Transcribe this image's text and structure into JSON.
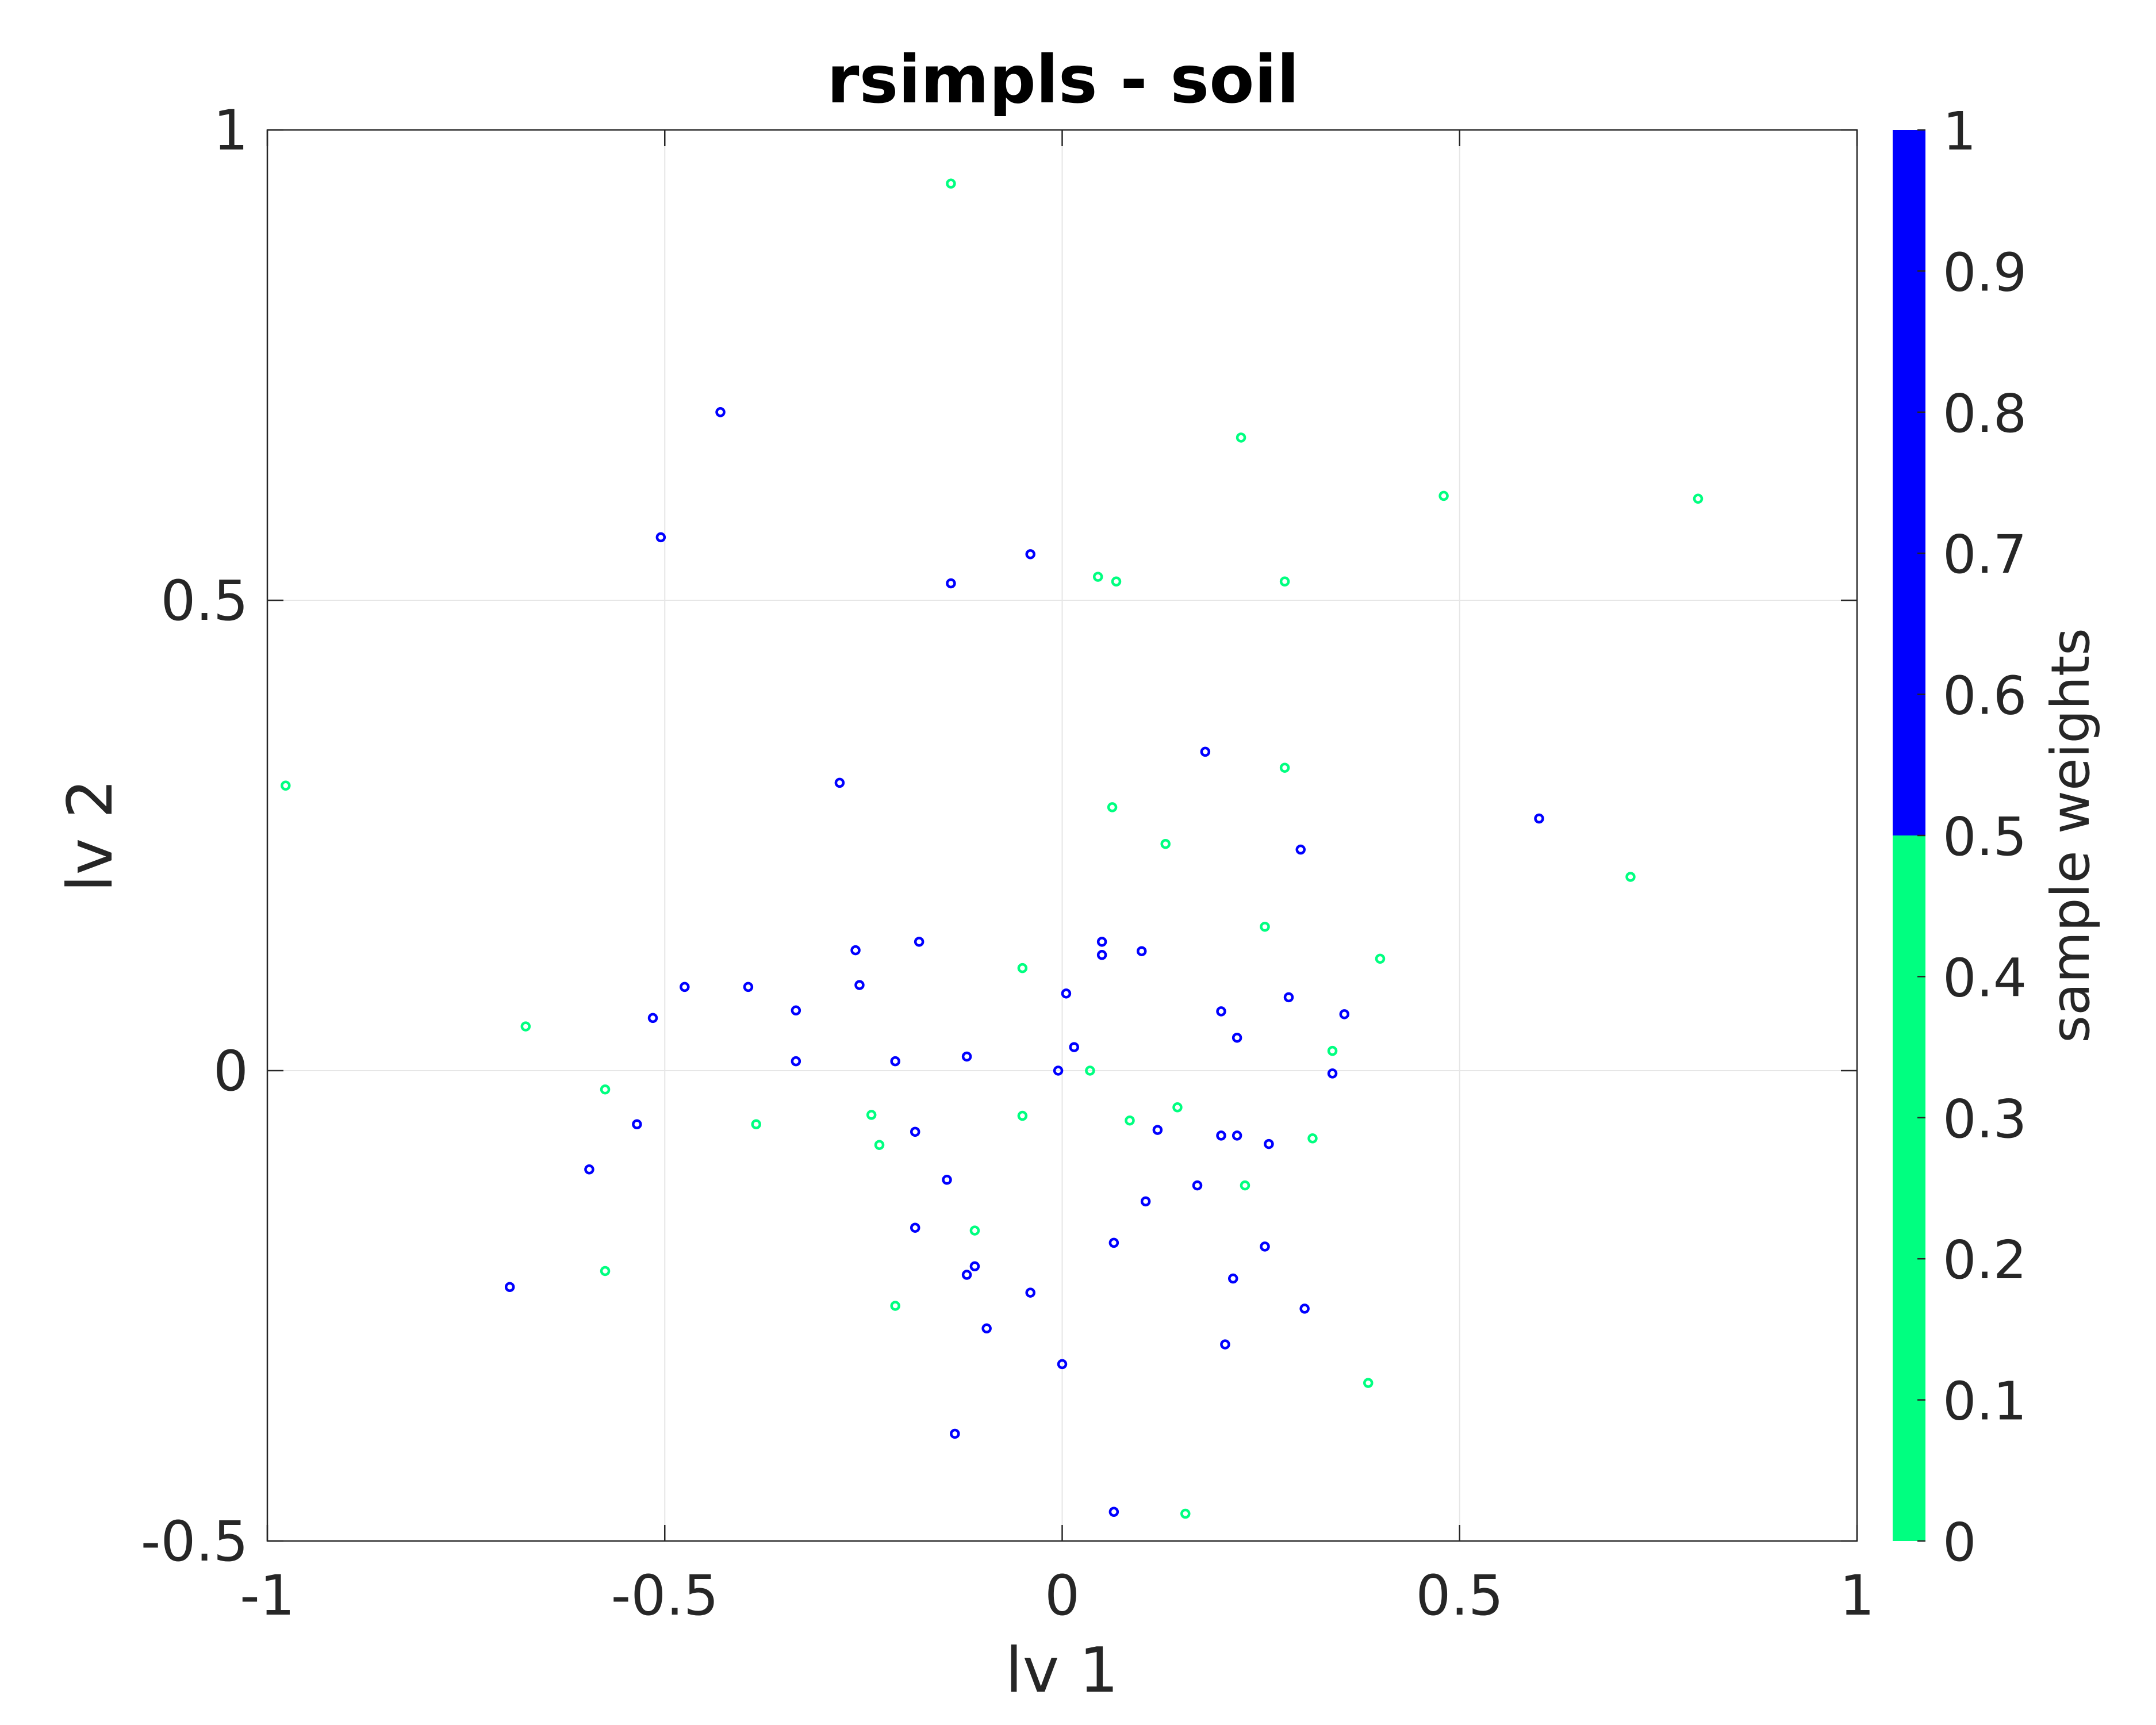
{
  "chart_data": {
    "type": "scatter",
    "title": "rsimpls - soil",
    "xlabel": "lv 1",
    "ylabel": "lv 2",
    "xlim": [
      -1,
      1
    ],
    "ylim": [
      -0.5,
      1
    ],
    "xticks": [
      -1,
      -0.5,
      0,
      0.5,
      1
    ],
    "xtick_labels": [
      "-1",
      "-0.5",
      "0",
      "0.5",
      "1"
    ],
    "yticks": [
      -0.5,
      0,
      0.5,
      1
    ],
    "ytick_labels": [
      "-0.5",
      "0",
      "0.5",
      "1"
    ],
    "grid": true,
    "colorbar": {
      "label": "sample weights",
      "ticks": [
        0,
        0.1,
        0.2,
        0.3,
        0.4,
        0.5,
        0.6,
        0.7,
        0.8,
        0.9,
        1
      ],
      "tick_labels": [
        "0",
        "0.1",
        "0.2",
        "0.3",
        "0.4",
        "0.5",
        "0.6",
        "0.7",
        "0.8",
        "0.9",
        "1"
      ],
      "segments": [
        {
          "from": 0,
          "to": 0.5,
          "color": "#00ff80"
        },
        {
          "from": 0.5,
          "to": 1,
          "color": "#0000ff"
        }
      ]
    },
    "colors": {
      "weight_0": "#00ff80",
      "weight_1": "#0000ff"
    },
    "series": [
      {
        "weight": 1,
        "points": [
          [
            -0.43,
            0.7
          ],
          [
            -0.505,
            0.567
          ],
          [
            -0.04,
            0.549
          ],
          [
            -0.14,
            0.518
          ],
          [
            -0.28,
            0.306
          ],
          [
            0.18,
            0.339
          ],
          [
            0.3,
            0.235
          ],
          [
            0.6,
            0.268
          ],
          [
            -0.26,
            0.128
          ],
          [
            -0.18,
            0.137
          ],
          [
            -0.475,
            0.089
          ],
          [
            -0.395,
            0.089
          ],
          [
            -0.255,
            0.091
          ],
          [
            -0.335,
            0.064
          ],
          [
            -0.515,
            0.056
          ],
          [
            0.05,
            0.137
          ],
          [
            0.05,
            0.123
          ],
          [
            0.1,
            0.127
          ],
          [
            0.005,
            0.082
          ],
          [
            0.285,
            0.078
          ],
          [
            0.2,
            0.063
          ],
          [
            0.355,
            0.06
          ],
          [
            0.22,
            0.035
          ],
          [
            0.015,
            0.025
          ],
          [
            -0.12,
            0.015
          ],
          [
            -0.335,
            0.01
          ],
          [
            -0.21,
            0.01
          ],
          [
            -0.005,
            0.0
          ],
          [
            0.34,
            -0.003
          ],
          [
            -0.535,
            -0.057
          ],
          [
            -0.185,
            -0.065
          ],
          [
            0.12,
            -0.063
          ],
          [
            0.2,
            -0.069
          ],
          [
            0.22,
            -0.069
          ],
          [
            0.26,
            -0.078
          ],
          [
            -0.595,
            -0.105
          ],
          [
            -0.145,
            -0.116
          ],
          [
            0.17,
            -0.122
          ],
          [
            0.105,
            -0.139
          ],
          [
            -0.185,
            -0.167
          ],
          [
            0.065,
            -0.183
          ],
          [
            0.255,
            -0.187
          ],
          [
            -0.11,
            -0.208
          ],
          [
            -0.12,
            -0.217
          ],
          [
            -0.695,
            -0.23
          ],
          [
            0.215,
            -0.221
          ],
          [
            -0.04,
            -0.236
          ],
          [
            0.305,
            -0.253
          ],
          [
            -0.095,
            -0.274
          ],
          [
            0.205,
            -0.291
          ],
          [
            0.0,
            -0.312
          ],
          [
            -0.135,
            -0.386
          ],
          [
            0.065,
            -0.469
          ]
        ]
      },
      {
        "weight": 0,
        "points": [
          [
            -0.14,
            0.943
          ],
          [
            0.225,
            0.673
          ],
          [
            0.48,
            0.611
          ],
          [
            0.8,
            0.608
          ],
          [
            0.045,
            0.525
          ],
          [
            0.068,
            0.52
          ],
          [
            0.28,
            0.52
          ],
          [
            -0.977,
            0.303
          ],
          [
            0.28,
            0.322
          ],
          [
            0.063,
            0.28
          ],
          [
            0.13,
            0.241
          ],
          [
            0.715,
            0.206
          ],
          [
            0.255,
            0.153
          ],
          [
            0.4,
            0.119
          ],
          [
            -0.05,
            0.109
          ],
          [
            -0.675,
            0.047
          ],
          [
            0.34,
            0.021
          ],
          [
            0.035,
            0.0
          ],
          [
            -0.575,
            -0.02
          ],
          [
            -0.24,
            -0.047
          ],
          [
            -0.05,
            -0.048
          ],
          [
            0.145,
            -0.039
          ],
          [
            0.085,
            -0.053
          ],
          [
            -0.385,
            -0.057
          ],
          [
            -0.23,
            -0.079
          ],
          [
            0.315,
            -0.072
          ],
          [
            0.23,
            -0.122
          ],
          [
            -0.11,
            -0.17
          ],
          [
            -0.575,
            -0.213
          ],
          [
            -0.21,
            -0.25
          ],
          [
            0.385,
            -0.332
          ],
          [
            0.155,
            -0.471
          ]
        ]
      }
    ]
  }
}
